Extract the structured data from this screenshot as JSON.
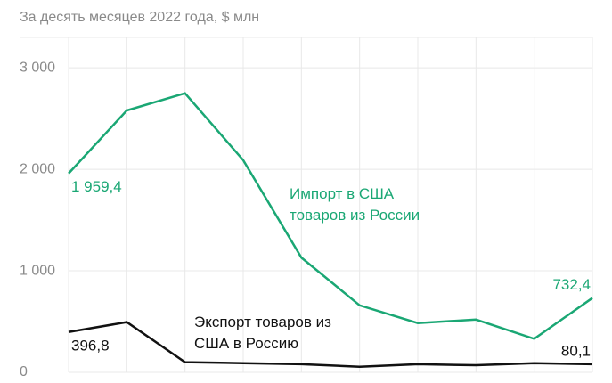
{
  "chart_data": {
    "type": "line",
    "subtitle": "За десять месяцев 2022 года, $ млн",
    "categories": [
      null,
      null,
      null,
      null,
      null,
      null,
      null,
      null,
      null,
      null
    ],
    "series": [
      {
        "name": "Импорт в США товаров из России",
        "color": "#1aa774",
        "values": [
          1959.4,
          2580,
          2750,
          2090,
          1130,
          660,
          485,
          520,
          330,
          732.4
        ],
        "value_labels": [
          "1 959,4",
          null,
          null,
          null,
          null,
          null,
          null,
          null,
          null,
          "732,4"
        ]
      },
      {
        "name": "Экспорт товаров из США в Россию",
        "color": "#111111",
        "values": [
          396.8,
          495,
          100,
          90,
          80,
          55,
          80,
          70,
          90,
          80.1
        ],
        "value_labels": [
          "396,8",
          null,
          null,
          null,
          null,
          null,
          null,
          null,
          null,
          "80,1"
        ]
      }
    ],
    "ylim": [
      0,
      3300
    ],
    "yticks": [
      {
        "value": 0,
        "label": "0"
      },
      {
        "value": 1000,
        "label": "1 000"
      },
      {
        "value": 2000,
        "label": "2 000"
      },
      {
        "value": 3000,
        "label": "3 000"
      }
    ],
    "grid": true
  }
}
